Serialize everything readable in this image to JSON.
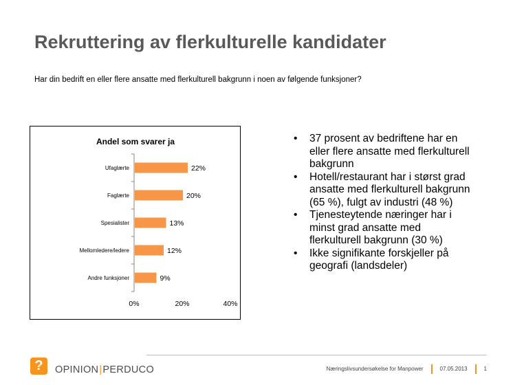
{
  "slide": {
    "title": "Rekruttering av flerkulturelle kandidater",
    "question": "Har din bedrift en eller flere ansatte med flerkulturell bakgrunn i noen av følgende funksjoner?"
  },
  "bullets": [
    "37 prosent av bedriftene har en eller flere ansatte med flerkulturell bakgrunn",
    "Hotell/restaurant har i størst grad ansatte med flerkulturell bakgrunn (65 %), fulgt av industri (48 %)",
    "Tjenesteytende næringer har i minst grad ansatte med flerkulturell bakgrunn (30 %)",
    "Ikke signifikante forskjeller på geografi (landsdeler)"
  ],
  "bullet_glyph": "•",
  "footer": {
    "logo_text_left": "OPINION",
    "logo_text_right": "PERDUCO",
    "logo_icon": "opinion-perduco-logo-icon",
    "logo_mark": "?",
    "source": "Næringslivsundersøkelse for Manpower",
    "date": "07.05.2013",
    "page": "1"
  },
  "colors": {
    "bar": "#f79646",
    "title": "#595959",
    "accent": "#f7941d"
  },
  "chart_data": {
    "type": "bar",
    "orientation": "horizontal",
    "title": "Andel som svarer ja",
    "categories": [
      "Ufaglærte",
      "Faglærte",
      "Spesialister",
      "Mellomledere/ledere",
      "Andre funksjoner"
    ],
    "values": [
      22,
      20,
      13,
      12,
      9
    ],
    "value_labels": [
      "22%",
      "20%",
      "13%",
      "12%",
      "9%"
    ],
    "xlim": [
      0,
      40
    ],
    "xticks": [
      0,
      20,
      40
    ],
    "xtick_labels": [
      "0%",
      "20%",
      "40%"
    ],
    "grid": false,
    "legend": "none"
  }
}
